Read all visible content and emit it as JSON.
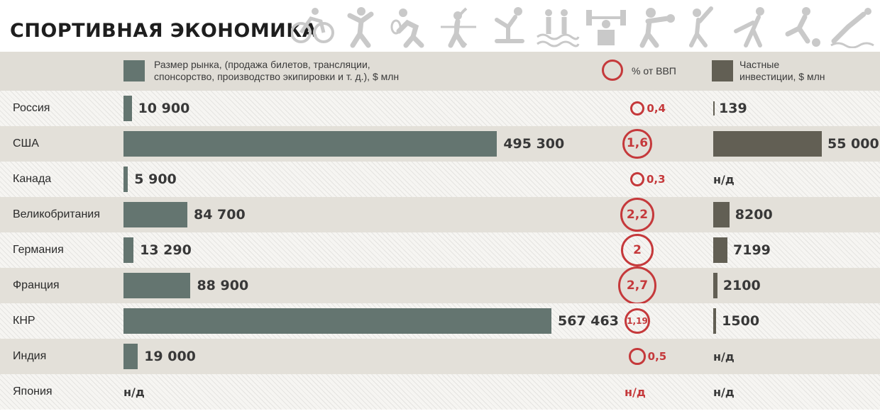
{
  "title": "СПОРТИВНАЯ ЭКОНОМИКА",
  "icons": [
    "cycling-icon",
    "volleyball-icon",
    "badminton-icon",
    "archery-icon",
    "gymnastics-icon",
    "synchronized-swimming-icon",
    "weightlifting-icon",
    "boxing-icon",
    "baseball-icon",
    "fencing-icon",
    "football-icon",
    "diving-icon"
  ],
  "legend": {
    "market": "Размер рынка, (продажа билетов, трансляции,\nспонсорство, производство экипировки и т. д.), $ млн",
    "gdp": "% от ВВП",
    "private": "Частные\nинвестиции, $ млн"
  },
  "colors": {
    "market": "#647570",
    "private": "#625f54",
    "gdp": "#c5393b"
  },
  "chart_data": {
    "type": "bar",
    "categories": [
      "Россия",
      "США",
      "Канада",
      "Великобритания",
      "Германия",
      "Франция",
      "КНР",
      "Индия",
      "Япония"
    ],
    "series": [
      {
        "name": "Размер рынка, (продажа билетов, трансляции, спонсорство, производство экипировки и т. д.), $ млн",
        "values": [
          10900,
          495300,
          5900,
          84700,
          13290,
          88900,
          567463,
          19000,
          null
        ],
        "labels": [
          "10 900",
          "495 300",
          "5 900",
          "84 700",
          "13 290",
          "88 900",
          "567 463",
          "19 000",
          "н/д"
        ]
      },
      {
        "name": "% от ВВП",
        "values": [
          0.4,
          1.6,
          0.3,
          2.2,
          2,
          2.7,
          1.19,
          0.5,
          null
        ],
        "labels": [
          "0,4",
          "1,6",
          "0,3",
          "2,2",
          "2",
          "2,7",
          "1,19",
          "0,5",
          "н/д"
        ]
      },
      {
        "name": "Частные инвестиции, $ млн",
        "values": [
          139,
          55000,
          null,
          8200,
          7199,
          2100,
          1500,
          null,
          null
        ],
        "labels": [
          "139",
          "55 000",
          "н/д",
          "8200",
          "7199",
          "2100",
          "1500",
          "н/д",
          "н/д"
        ]
      }
    ]
  }
}
